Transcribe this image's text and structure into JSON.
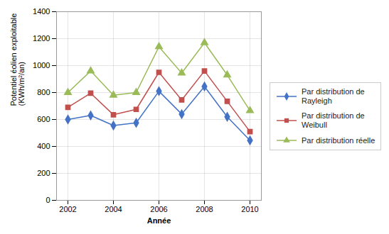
{
  "chart_data": {
    "type": "line",
    "x": [
      2002,
      2003,
      2004,
      2005,
      2006,
      2007,
      2008,
      2009,
      2010
    ],
    "series": [
      {
        "name": "Par distribution de\nRayleigh",
        "color": "#4472C4",
        "marker": "diamond",
        "values": [
          600,
          630,
          555,
          575,
          810,
          640,
          845,
          620,
          445
        ]
      },
      {
        "name": "Par distribution de\nWeibull",
        "color": "#C0504D",
        "marker": "square",
        "values": [
          690,
          795,
          635,
          675,
          950,
          745,
          960,
          735,
          510
        ]
      },
      {
        "name": "Par distribution réelle",
        "color": "#9BBB59",
        "marker": "triangle",
        "values": [
          800,
          960,
          780,
          800,
          1140,
          945,
          1170,
          930,
          665
        ]
      }
    ],
    "xlabel": "Année",
    "ylabel": "Potentiel éolien exploitable\n(KWh/m²/an)",
    "xlim": [
      2001.5,
      2010.5
    ],
    "xticks": [
      2002,
      2004,
      2006,
      2008,
      2010
    ],
    "ylim": [
      0,
      1400
    ],
    "yticks": [
      0,
      200,
      400,
      600,
      800,
      1000,
      1200,
      1400
    ],
    "grid": true,
    "legend": "right"
  }
}
